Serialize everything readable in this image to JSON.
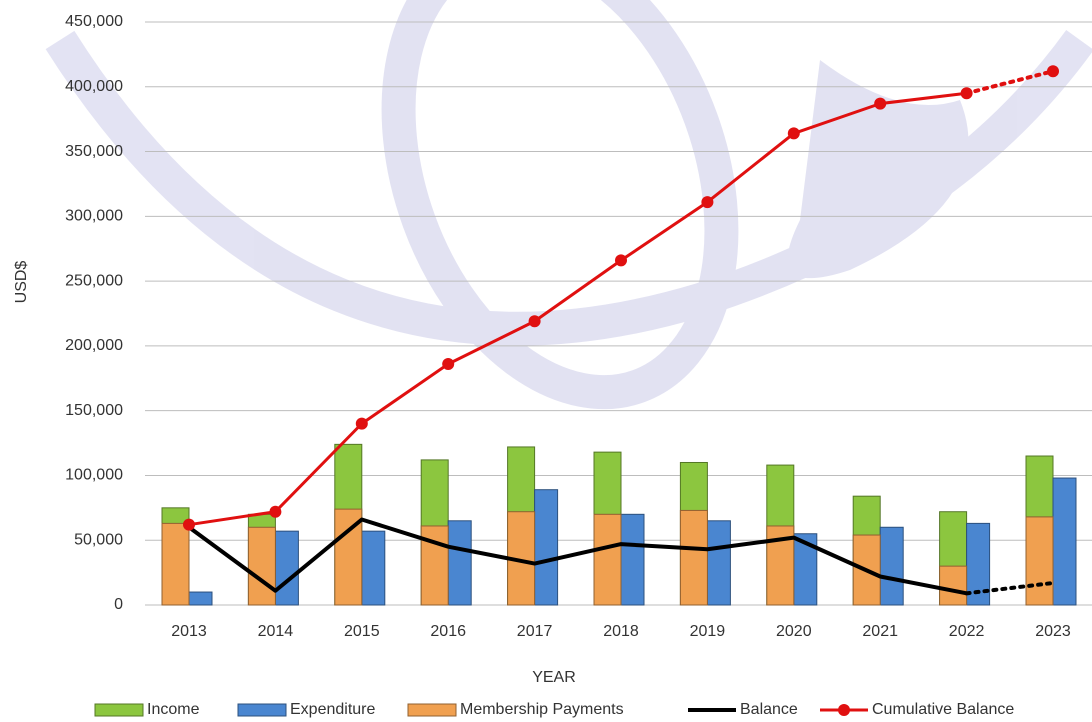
{
  "chart_data": {
    "type": "combo",
    "x_label": "YEAR",
    "y_label": "USD$",
    "categories": [
      "2013",
      "2014",
      "2015",
      "2016",
      "2017",
      "2018",
      "2019",
      "2020",
      "2021",
      "2022",
      "2023"
    ],
    "ylim": [
      0,
      450000
    ],
    "yticks": [
      0,
      {
        "value": 50000,
        "label": "50,000"
      },
      {
        "value": 100000,
        "label": "100,000"
      },
      {
        "value": 150000,
        "label": "150,000"
      },
      {
        "value": 200000,
        "label": "200,000"
      },
      {
        "value": 250000,
        "label": "250,000"
      },
      {
        "value": 300000,
        "label": "300,000"
      },
      {
        "value": 350000,
        "label": "350,000"
      },
      {
        "value": 400000,
        "label": "400,000"
      },
      {
        "value": 450000,
        "label": "450,000"
      }
    ],
    "grid": true,
    "legend": "bottom",
    "series": [
      {
        "name": "Income",
        "type": "bar",
        "slot": "left",
        "color": "#8cc63f",
        "values": [
          75000,
          70000,
          124000,
          112000,
          122000,
          118000,
          110000,
          108000,
          84000,
          72000,
          115000
        ]
      },
      {
        "name": "Expenditure",
        "type": "bar",
        "slot": "right",
        "color": "#4a86d0",
        "values": [
          10000,
          57000,
          57000,
          65000,
          89000,
          70000,
          65000,
          55000,
          60000,
          63000,
          98000
        ]
      },
      {
        "name": "Membership Payments",
        "type": "bar",
        "slot": "left",
        "color": "#f0a050",
        "values": [
          63000,
          60000,
          74000,
          61000,
          72000,
          70000,
          73000,
          61000,
          54000,
          30000,
          68000
        ]
      },
      {
        "name": "Balance",
        "type": "line",
        "markers": false,
        "dotted_last": true,
        "color": "#000000",
        "values": [
          60000,
          11000,
          66000,
          45000,
          32000,
          47000,
          43000,
          52000,
          22000,
          9000,
          17000
        ]
      },
      {
        "name": "Cumulative Balance",
        "type": "line",
        "markers": true,
        "dotted_last": true,
        "color": "#e01010",
        "values": [
          62000,
          72000,
          140000,
          186000,
          219000,
          266000,
          311000,
          364000,
          387000,
          395000,
          412000
        ]
      }
    ]
  }
}
